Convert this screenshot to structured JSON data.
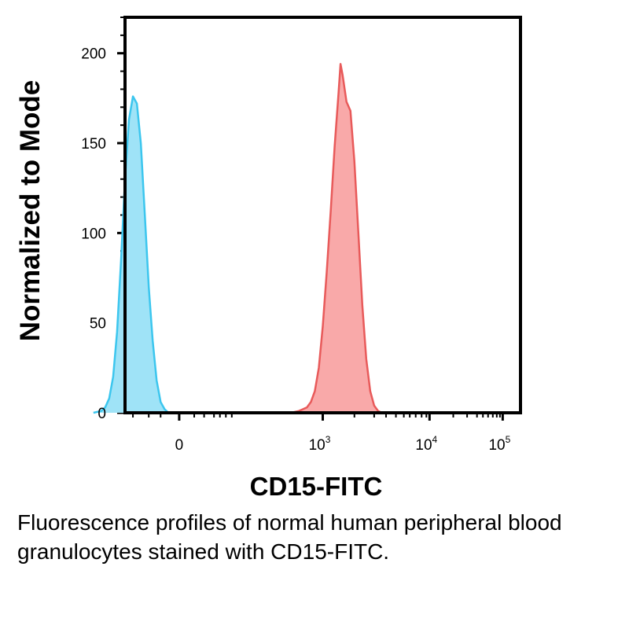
{
  "chart_data": {
    "type": "area",
    "xlabel": "CD15-FITC",
    "ylabel": "Normalized to Mode",
    "ylim": [
      0,
      220
    ],
    "yticks": [
      0,
      50,
      100,
      150,
      200
    ],
    "xscale": "biexponential",
    "xticks": [
      {
        "base": "0",
        "exp": ""
      },
      {
        "base": "10",
        "exp": "3"
      },
      {
        "base": "10",
        "exp": "4"
      },
      {
        "base": "10",
        "exp": "5"
      }
    ],
    "series": [
      {
        "color": "#3cc6ee",
        "fill": "#9fe3f7",
        "points": [
          [
            -0.08,
            0
          ],
          [
            -0.06,
            1
          ],
          [
            -0.05,
            3
          ],
          [
            -0.04,
            8
          ],
          [
            -0.03,
            20
          ],
          [
            -0.02,
            45
          ],
          [
            -0.01,
            85
          ],
          [
            0.0,
            130
          ],
          [
            0.01,
            163
          ],
          [
            0.02,
            176
          ],
          [
            0.03,
            172
          ],
          [
            0.04,
            150
          ],
          [
            0.05,
            110
          ],
          [
            0.06,
            70
          ],
          [
            0.07,
            40
          ],
          [
            0.08,
            18
          ],
          [
            0.09,
            6
          ],
          [
            0.1,
            2
          ],
          [
            0.11,
            0
          ]
        ]
      },
      {
        "color": "#e85a5a",
        "fill": "#f9a9a9",
        "points": [
          [
            0.42,
            0
          ],
          [
            0.44,
            1
          ],
          [
            0.46,
            3
          ],
          [
            0.47,
            6
          ],
          [
            0.48,
            12
          ],
          [
            0.49,
            25
          ],
          [
            0.5,
            48
          ],
          [
            0.51,
            78
          ],
          [
            0.52,
            112
          ],
          [
            0.53,
            148
          ],
          [
            0.54,
            178
          ],
          [
            0.545,
            194
          ],
          [
            0.55,
            188
          ],
          [
            0.56,
            173
          ],
          [
            0.57,
            168
          ],
          [
            0.58,
            140
          ],
          [
            0.59,
            100
          ],
          [
            0.6,
            60
          ],
          [
            0.61,
            30
          ],
          [
            0.62,
            12
          ],
          [
            0.63,
            4
          ],
          [
            0.64,
            1
          ],
          [
            0.65,
            0
          ]
        ]
      }
    ]
  },
  "caption": "Fluorescence profiles of normal human peripheral blood granulocytes stained with CD15-FITC."
}
